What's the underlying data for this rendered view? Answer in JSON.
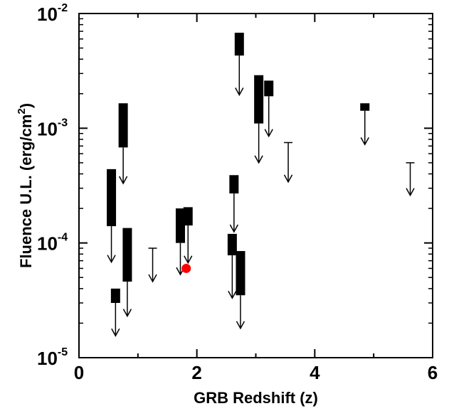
{
  "chart_data": {
    "type": "scatter",
    "xlabel": "GRB Redshift (z)",
    "ylabel": {
      "main": "Fluence U.L. (erg/cm",
      "sup": "2",
      "close": ")"
    },
    "xlim": [
      0,
      6
    ],
    "ylim": [
      1e-05,
      0.01
    ],
    "yscale": "log",
    "grid": false,
    "x_ticks": [
      "0",
      "2",
      "4",
      "6"
    ],
    "y_ticks": [
      {
        "base": "10",
        "exp": "-5"
      },
      {
        "base": "10",
        "exp": "-4"
      },
      {
        "base": "10",
        "exp": "-3"
      },
      {
        "base": "10",
        "exp": "-2"
      }
    ],
    "series": [
      {
        "marker": "upper-limit-arrow",
        "color": "#000000",
        "points": [
          {
            "z": 0.55,
            "ul_high": 0.00044,
            "ul_low": 0.00014,
            "arrow_to": 6.8e-05
          },
          {
            "z": 0.62,
            "ul_high": 4e-05,
            "ul_low": 3e-05,
            "arrow_to": 1.55e-05
          },
          {
            "z": 0.75,
            "ul_high": 0.00165,
            "ul_low": 0.00068,
            "arrow_to": 0.00033
          },
          {
            "z": 0.82,
            "ul_high": 0.000135,
            "ul_low": 4.6e-05,
            "arrow_to": 2.3e-05
          },
          {
            "z": 1.25,
            "ul_high": 9e-05,
            "ul_low": 9e-05,
            "arrow_to": 4.6e-05
          },
          {
            "z": 1.72,
            "ul_high": 0.0002,
            "ul_low": 0.0001,
            "arrow_to": 5.3e-05
          },
          {
            "z": 1.85,
            "ul_high": 0.000205,
            "ul_low": 0.000142,
            "arrow_to": 6.7e-05
          },
          {
            "z": 2.6,
            "ul_high": 0.00012,
            "ul_low": 7.8e-05,
            "arrow_to": 3.3e-05
          },
          {
            "z": 2.63,
            "ul_high": 0.00039,
            "ul_low": 0.00027,
            "arrow_to": 0.000125
          },
          {
            "z": 2.72,
            "ul_high": 0.0068,
            "ul_low": 0.0043,
            "arrow_to": 0.00195
          },
          {
            "z": 2.74,
            "ul_high": 8.5e-05,
            "ul_low": 3.5e-05,
            "arrow_to": 1.8e-05
          },
          {
            "z": 3.05,
            "ul_high": 0.0029,
            "ul_low": 0.0011,
            "arrow_to": 0.0005
          },
          {
            "z": 3.22,
            "ul_high": 0.0026,
            "ul_low": 0.0019,
            "arrow_to": 0.00085
          },
          {
            "z": 3.55,
            "ul_high": 0.00075,
            "ul_low": 0.00075,
            "arrow_to": 0.00034
          },
          {
            "z": 4.85,
            "ul_high": 0.00165,
            "ul_low": 0.00142,
            "arrow_to": 0.00072
          },
          {
            "z": 5.62,
            "ul_high": 0.0005,
            "ul_low": 0.0005,
            "arrow_to": 0.00026
          }
        ]
      },
      {
        "marker": "dot",
        "color": "#ff0000",
        "points": [
          {
            "z": 1.82,
            "fluence": 6e-05
          }
        ]
      }
    ]
  }
}
